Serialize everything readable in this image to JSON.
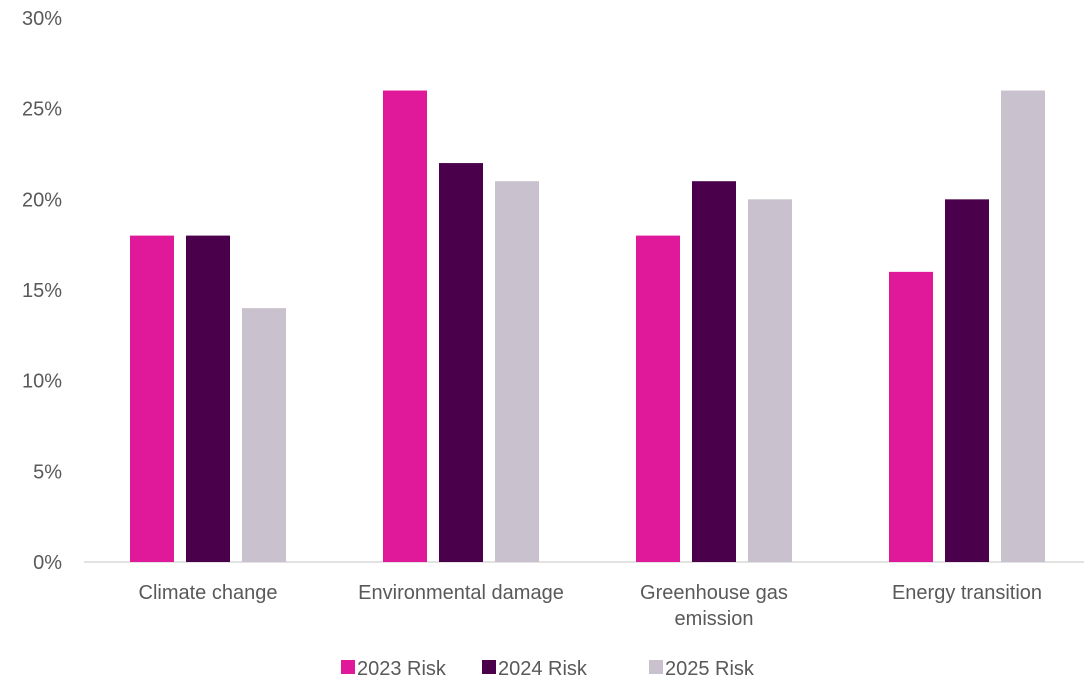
{
  "chart_data": {
    "type": "bar",
    "categories": [
      [
        "Climate change"
      ],
      [
        "Environmental damage"
      ],
      [
        "Greenhouse gas",
        "emission"
      ],
      [
        "Energy transition"
      ]
    ],
    "series": [
      {
        "name": "2023 Risk",
        "color": "#E0189A",
        "values": [
          18,
          26,
          18,
          16
        ]
      },
      {
        "name": "2024 Risk",
        "color": "#4B004B",
        "values": [
          18,
          22,
          21,
          20
        ]
      },
      {
        "name": "2025 Risk",
        "color": "#C9C1CE",
        "values": [
          14,
          21,
          20,
          26
        ]
      }
    ],
    "title": "",
    "xlabel": "",
    "ylabel": "",
    "ylim": [
      0,
      30
    ],
    "yticks": [
      0,
      5,
      10,
      15,
      20,
      25,
      30
    ],
    "ytick_labels": [
      "0%",
      "5%",
      "10%",
      "15%",
      "20%",
      "25%",
      "30%"
    ],
    "grid": false,
    "legend_position": "bottom-center",
    "axis_color": "#D9D9D9"
  }
}
